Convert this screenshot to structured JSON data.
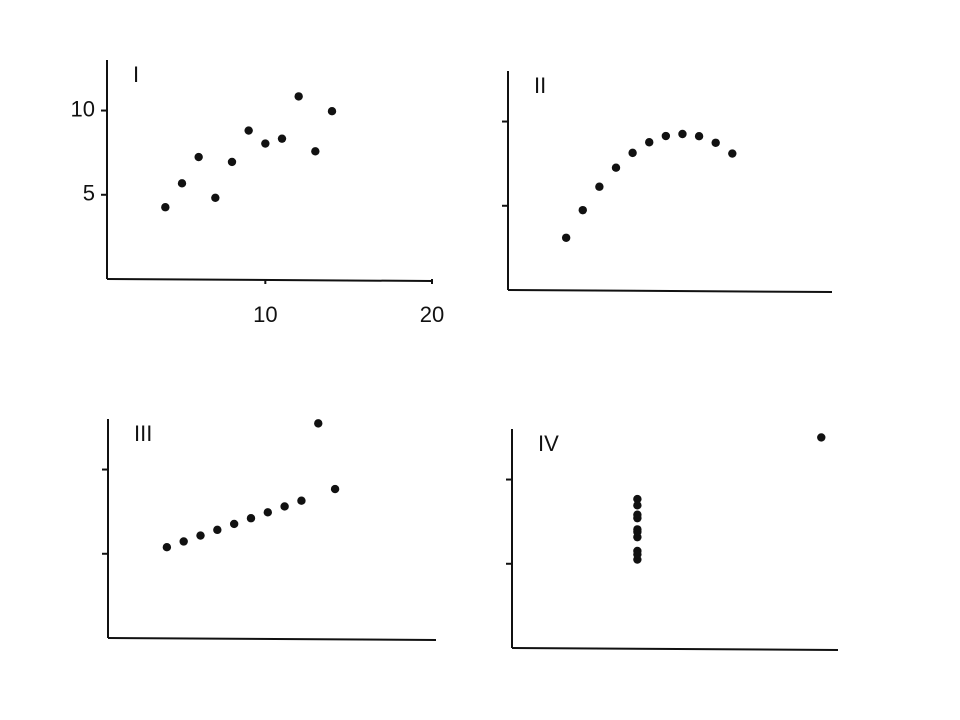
{
  "chart_data": [
    {
      "type": "scatter",
      "title": "I",
      "x": [
        10,
        8,
        13,
        9,
        11,
        14,
        6,
        4,
        12,
        7,
        5
      ],
      "y": [
        8.04,
        6.95,
        7.58,
        8.81,
        8.33,
        9.96,
        7.24,
        4.26,
        10.84,
        4.82,
        5.68
      ],
      "xlim": [
        0.5,
        20
      ],
      "ylim": [
        0,
        13
      ],
      "xticks": [
        10,
        20
      ],
      "yticks": [
        5,
        10
      ],
      "tick_labels": true,
      "color": "#111111"
    },
    {
      "type": "scatter",
      "title": "II",
      "x": [
        10,
        8,
        13,
        9,
        11,
        14,
        6,
        4,
        12,
        7,
        5
      ],
      "y": [
        9.14,
        8.14,
        8.74,
        8.77,
        9.26,
        8.1,
        6.13,
        3.1,
        9.13,
        7.26,
        4.74
      ],
      "xlim": [
        0.5,
        20
      ],
      "ylim": [
        0,
        13
      ],
      "yticks": [
        5,
        10
      ],
      "tick_labels": false,
      "color": "#111111"
    },
    {
      "type": "scatter",
      "title": "III",
      "x": [
        10,
        8,
        13,
        9,
        11,
        14,
        6,
        4,
        12,
        7,
        5
      ],
      "y": [
        7.46,
        6.77,
        12.74,
        7.11,
        7.81,
        8.84,
        6.08,
        5.39,
        8.15,
        6.42,
        5.73
      ],
      "xlim": [
        0.5,
        20
      ],
      "ylim": [
        0,
        13
      ],
      "yticks": [
        5,
        10
      ],
      "tick_labels": false,
      "color": "#111111"
    },
    {
      "type": "scatter",
      "title": "IV",
      "x": [
        8,
        8,
        8,
        8,
        8,
        8,
        8,
        19,
        8,
        8,
        8
      ],
      "y": [
        6.58,
        5.76,
        7.71,
        8.84,
        8.47,
        7.04,
        5.25,
        12.5,
        5.56,
        7.91,
        6.89
      ],
      "xlim": [
        0.5,
        20
      ],
      "ylim": [
        0,
        13
      ],
      "yticks": [
        5,
        10
      ],
      "tick_labels": false,
      "color": "#111111"
    }
  ]
}
